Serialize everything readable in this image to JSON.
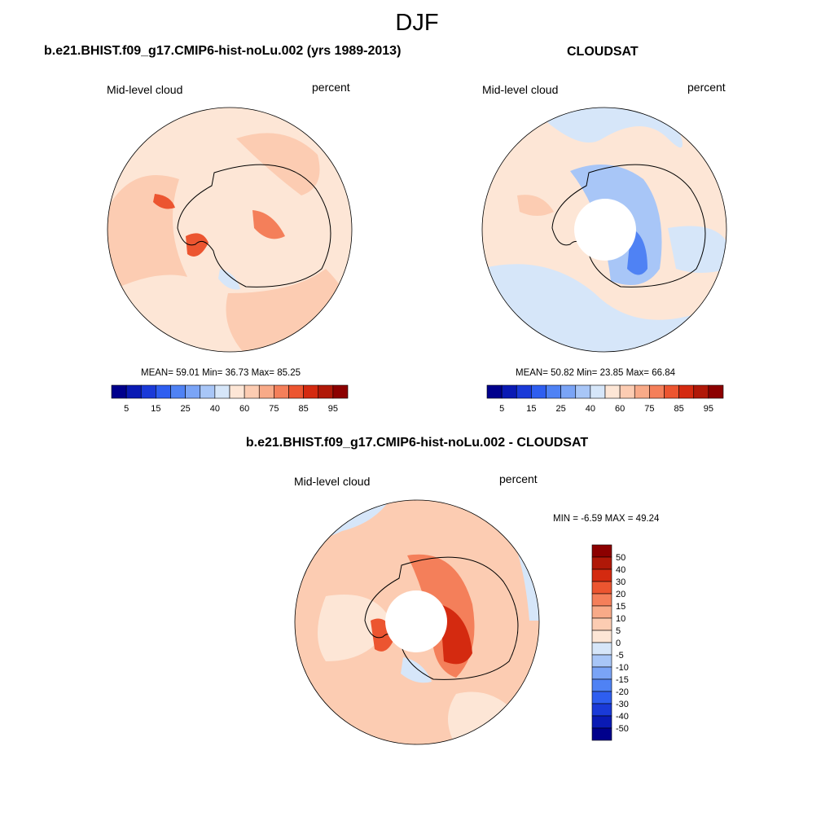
{
  "title": "DJF",
  "colorbar_abs": {
    "colors": [
      "#00008c",
      "#0a1ab4",
      "#1a3ad8",
      "#2e5ef0",
      "#4f82f4",
      "#7aa4f6",
      "#a8c6f7",
      "#d6e6f9",
      "#fde6d6",
      "#fcccb2",
      "#f8aa88",
      "#f47f5a",
      "#ec5530",
      "#d42a10",
      "#b01808",
      "#8c0000"
    ],
    "labels": [
      "5",
      "15",
      "25",
      "40",
      "60",
      "75",
      "85",
      "95"
    ]
  },
  "colorbar_diff": {
    "colors": [
      "#00008c",
      "#0a1ab4",
      "#1a3ad8",
      "#2e5ef0",
      "#4f82f4",
      "#7aa4f6",
      "#a8c6f7",
      "#d6e6f9",
      "#fde6d6",
      "#fcccb2",
      "#f8aa88",
      "#f47f5a",
      "#ec5530",
      "#d42a10",
      "#b01808",
      "#8c0000"
    ],
    "labels": [
      "50",
      "40",
      "30",
      "20",
      "15",
      "10",
      "5",
      "0",
      "-5",
      "-10",
      "-15",
      "-20",
      "-30",
      "-40",
      "-50"
    ]
  },
  "panels": {
    "model": {
      "title": "b.e21.BHIST.f09_g17.CMIP6-hist-noLu.002 (yrs 1989-2013)",
      "variable": "Mid-level cloud",
      "units": "percent",
      "mean_label": "MEAN=",
      "mean": "59.01",
      "min_label": "Min=",
      "min": "36.73",
      "max_label": "Max=",
      "max": "85.25",
      "map_data": {
        "type": "polar_contour",
        "region": "Antarctica",
        "projection": "south polar stereographic",
        "mean": 59.01,
        "min": 36.73,
        "max": 85.25
      }
    },
    "obs": {
      "title": "CLOUDSAT",
      "variable": "Mid-level cloud",
      "units": "percent",
      "mean_label": "MEAN=",
      "mean": "50.82",
      "min_label": "Min=",
      "min": "23.85",
      "max_label": "Max=",
      "max": "66.84",
      "map_data": {
        "type": "polar_contour",
        "region": "Antarctica",
        "projection": "south polar stereographic",
        "mean": 50.82,
        "min": 23.85,
        "max": 66.84
      }
    },
    "diff": {
      "title": "b.e21.BHIST.f09_g17.CMIP6-hist-noLu.002 - CLOUDSAT",
      "variable": "Mid-level cloud",
      "units": "percent",
      "min_label": "MIN =",
      "min": "-6.59",
      "max_label": "MAX =",
      "max": "49.24",
      "map_data": {
        "type": "polar_contour_difference",
        "region": "Antarctica",
        "projection": "south polar stereographic",
        "min": -6.59,
        "max": 49.24
      }
    }
  }
}
